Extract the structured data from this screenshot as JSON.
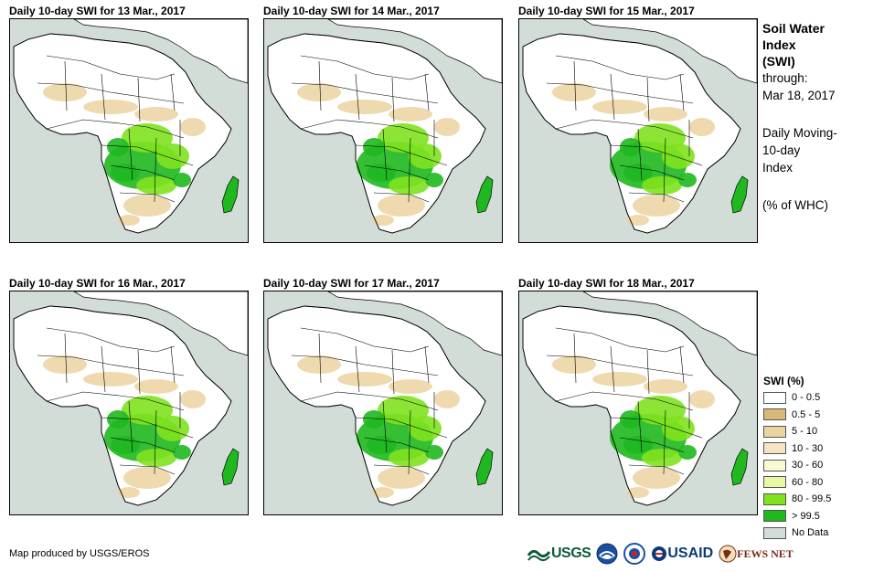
{
  "panels": [
    {
      "title": "Daily 10-day SWI for 13 Mar., 2017"
    },
    {
      "title": "Daily 10-day SWI for 14 Mar., 2017"
    },
    {
      "title": "Daily 10-day SWI for 15 Mar., 2017"
    },
    {
      "title": "Daily 10-day SWI for 16 Mar., 2017"
    },
    {
      "title": "Daily 10-day SWI for 17 Mar., 2017"
    },
    {
      "title": "Daily 10-day SWI for 18 Mar., 2017"
    }
  ],
  "side_info": {
    "title_line1": "Soil Water",
    "title_line2": "Index",
    "title_line3": "(SWI)",
    "through_label": "through:",
    "through_date": "Mar 18, 2017",
    "desc_line1": "Daily Moving-",
    "desc_line2": "10-day",
    "desc_line3": "Index",
    "units": "(% of WHC)"
  },
  "legend": {
    "title": "SWI (%)",
    "items": [
      {
        "label": "0 - 0.5",
        "color": "#ffffff"
      },
      {
        "label": "0.5 - 5",
        "color": "#d8b97a"
      },
      {
        "label": "5 - 10",
        "color": "#ecd3a2"
      },
      {
        "label": "10 - 30",
        "color": "#f6e4c4"
      },
      {
        "label": "30 - 60",
        "color": "#fafad2"
      },
      {
        "label": "60 - 80",
        "color": "#e6f8a4"
      },
      {
        "label": "80 - 99.5",
        "color": "#7fe21f"
      },
      {
        "label": "> 99.5",
        "color": "#1fb81f"
      },
      {
        "label": "No Data",
        "color": "#d3ddd7"
      }
    ]
  },
  "credit": "Map produced by USGS/EROS",
  "logos": {
    "usgs": "USGS",
    "usaid": "USAID",
    "fews": "FEWS NET"
  },
  "colors": {
    "land": "#ffffff",
    "ocean": "#d3ddd7",
    "dry": "#ecd3a2",
    "wet": "#7fe21f",
    "saturated": "#1fb81f"
  }
}
